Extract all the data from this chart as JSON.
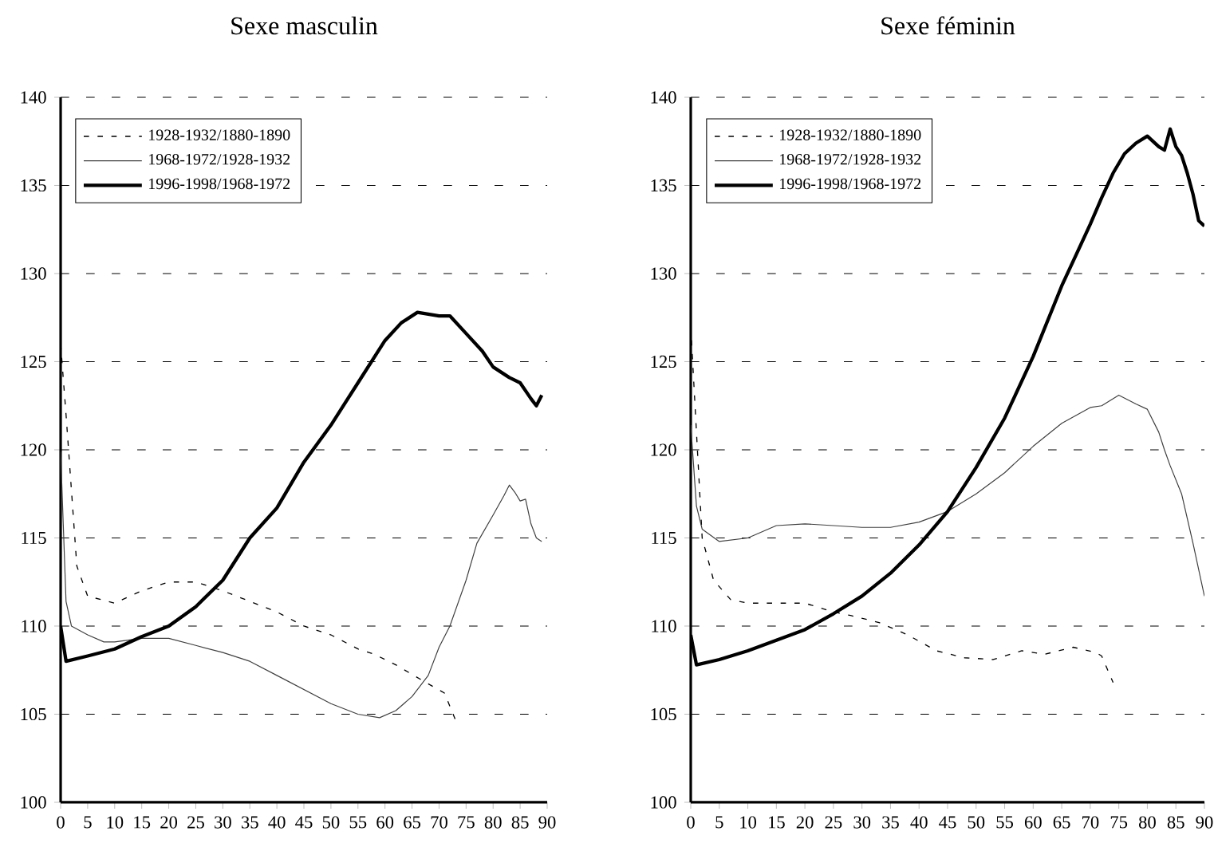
{
  "chart_data": [
    {
      "type": "line",
      "title": "Sexe masculin",
      "xlim": [
        0,
        90
      ],
      "xticks": [
        0,
        5,
        10,
        15,
        20,
        25,
        30,
        35,
        40,
        45,
        50,
        55,
        60,
        65,
        70,
        75,
        80,
        85,
        90
      ],
      "ylim": [
        100,
        140
      ],
      "yticks": [
        100,
        105,
        110,
        115,
        120,
        125,
        130,
        135,
        140
      ],
      "grid": "y",
      "legend": "top left",
      "series": [
        {
          "name": "1928-1932/1880-1890",
          "color": "#000000",
          "line_style": "dashed",
          "x": [
            0,
            1,
            3,
            5,
            10,
            15,
            20,
            25,
            30,
            35,
            40,
            45,
            50,
            55,
            58,
            62,
            67,
            71,
            73
          ],
          "values": [
            126,
            122,
            113.4,
            111.7,
            111.3,
            112.0,
            112.5,
            112.5,
            112.0,
            111.4,
            110.8,
            110.0,
            109.5,
            108.7,
            108.4,
            107.8,
            106.9,
            106.2,
            104.7
          ]
        },
        {
          "name": "1968-1972/1928-1932",
          "color": "#404040",
          "line_style": "solid",
          "x": [
            0,
            1,
            2,
            5,
            8,
            10,
            15,
            20,
            25,
            30,
            35,
            40,
            45,
            50,
            55,
            59,
            62,
            65,
            68,
            70,
            72,
            75,
            77,
            80,
            82,
            83,
            84,
            85,
            86,
            87,
            88,
            89
          ],
          "values": [
            119.9,
            111.4,
            110.0,
            109.5,
            109.1,
            109.1,
            109.3,
            109.3,
            108.9,
            108.5,
            108.0,
            107.2,
            106.4,
            105.6,
            105.0,
            104.8,
            105.2,
            106.0,
            107.2,
            108.8,
            110.0,
            112.6,
            114.7,
            116.3,
            117.4,
            118.0,
            117.6,
            117.1,
            117.2,
            115.8,
            115.0,
            114.8
          ]
        },
        {
          "name": "1996-1998/1968-1972",
          "color": "#000000",
          "line_style": "solid",
          "x": [
            0,
            1,
            5,
            10,
            15,
            20,
            25,
            30,
            35,
            40,
            45,
            50,
            55,
            60,
            63,
            66,
            70,
            72,
            75,
            78,
            80,
            83,
            85,
            87,
            88,
            89
          ],
          "values": [
            110,
            108.0,
            108.3,
            108.7,
            109.4,
            110.0,
            111.1,
            112.6,
            115.0,
            116.7,
            119.3,
            121.4,
            123.8,
            126.2,
            127.2,
            127.8,
            127.6,
            127.6,
            126.6,
            125.6,
            124.7,
            124.1,
            123.8,
            122.9,
            122.5,
            123.1
          ]
        }
      ]
    },
    {
      "type": "line",
      "title": "Sexe féminin",
      "xlim": [
        0,
        90
      ],
      "xticks": [
        0,
        5,
        10,
        15,
        20,
        25,
        30,
        35,
        40,
        45,
        50,
        55,
        60,
        65,
        70,
        75,
        80,
        85,
        90
      ],
      "ylim": [
        100,
        140
      ],
      "yticks": [
        100,
        105,
        110,
        115,
        120,
        125,
        130,
        135,
        140
      ],
      "grid": "y",
      "legend": "top left",
      "series": [
        {
          "name": "1928-1932/1880-1890",
          "color": "#000000",
          "line_style": "dashed",
          "x": [
            0,
            1,
            2,
            4,
            7,
            10,
            15,
            20,
            25,
            28,
            33,
            38,
            43,
            48,
            53,
            58,
            62,
            67,
            71,
            72,
            74
          ],
          "values": [
            127,
            121,
            115,
            112.6,
            111.5,
            111.3,
            111.3,
            111.3,
            110.8,
            110.6,
            110.2,
            109.5,
            108.6,
            108.2,
            108.1,
            108.6,
            108.4,
            108.8,
            108.5,
            108.3,
            106.8
          ]
        },
        {
          "name": "1968-1972/1928-1932",
          "color": "#404040",
          "line_style": "solid",
          "x": [
            0,
            1,
            2,
            5,
            10,
            15,
            20,
            25,
            30,
            35,
            40,
            45,
            50,
            55,
            60,
            65,
            70,
            72,
            75,
            78,
            80,
            82,
            83,
            84,
            86,
            88,
            90
          ],
          "values": [
            121.4,
            116.8,
            115.5,
            114.8,
            115.0,
            115.7,
            115.8,
            115.7,
            115.6,
            115.6,
            115.9,
            116.5,
            117.5,
            118.7,
            120.2,
            121.5,
            122.4,
            122.5,
            123.1,
            122.6,
            122.3,
            121.0,
            120.0,
            119.1,
            117.5,
            114.7,
            111.7
          ]
        },
        {
          "name": "1996-1998/1968-1972",
          "color": "#000000",
          "line_style": "solid",
          "x": [
            0,
            1,
            5,
            10,
            15,
            20,
            25,
            30,
            35,
            40,
            45,
            50,
            55,
            60,
            65,
            68,
            70,
            72,
            74,
            76,
            78,
            80,
            81,
            82,
            83,
            84,
            85,
            86,
            87,
            88,
            89,
            90
          ],
          "values": [
            109.5,
            107.8,
            108.1,
            108.6,
            109.2,
            109.8,
            110.7,
            111.7,
            113.0,
            114.6,
            116.5,
            119.0,
            121.8,
            125.3,
            129.3,
            131.4,
            132.8,
            134.3,
            135.7,
            136.8,
            137.4,
            137.8,
            137.5,
            137.2,
            137.0,
            138.2,
            137.2,
            136.7,
            135.7,
            134.5,
            133.0,
            132.7
          ]
        }
      ]
    }
  ]
}
